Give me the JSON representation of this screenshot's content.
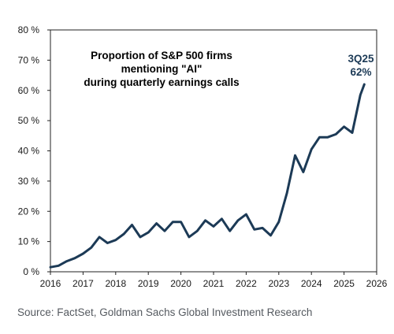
{
  "chart_data": {
    "type": "line",
    "title_lines": [
      "Proportion of S&P 500 firms",
      "mentioning \"AI\"",
      "during quarterly earnings calls"
    ],
    "xlabel": "",
    "ylabel": "",
    "xlim": [
      2016,
      2026
    ],
    "ylim": [
      0,
      80
    ],
    "x_ticks": [
      "2016",
      "2017",
      "2018",
      "2019",
      "2020",
      "2021",
      "2022",
      "2023",
      "2024",
      "2025",
      "2026"
    ],
    "y_ticks": [
      "0 %",
      "10 %",
      "20 %",
      "30 %",
      "40 %",
      "50 %",
      "60 %",
      "70 %",
      "80 %"
    ],
    "grid": false,
    "legend": "none",
    "line_color": "#1c3a56",
    "series": [
      {
        "x": [
          2016.0,
          2016.25,
          2016.5,
          2016.75,
          2017.0,
          2017.25,
          2017.5,
          2017.75,
          2018.0,
          2018.25,
          2018.5,
          2018.75,
          2019.0,
          2019.25,
          2019.5,
          2019.75,
          2020.0,
          2020.25,
          2020.5,
          2020.75,
          2021.0,
          2021.25,
          2021.5,
          2021.75,
          2022.0,
          2022.25,
          2022.5,
          2022.75,
          2023.0,
          2023.25,
          2023.5,
          2023.75,
          2024.0,
          2024.25,
          2024.5,
          2024.75,
          2025.0,
          2025.25,
          2025.5,
          2025.62
        ],
        "values": [
          1.5,
          2.0,
          3.5,
          4.5,
          6.0,
          8.0,
          11.5,
          9.5,
          10.5,
          12.5,
          15.5,
          11.5,
          13.0,
          16.0,
          13.5,
          16.5,
          16.5,
          11.5,
          13.5,
          17.0,
          15.0,
          17.5,
          13.5,
          17.0,
          19.0,
          14.0,
          14.5,
          12.0,
          16.5,
          26.0,
          38.5,
          33.0,
          40.5,
          44.5,
          44.5,
          45.5,
          48.0,
          46.0,
          58.5,
          62.0
        ]
      }
    ],
    "annotations": [
      {
        "label": "3Q25",
        "value_label": "62%"
      }
    ],
    "source": "Source: FactSet, Goldman Sachs Global Investment Research"
  }
}
